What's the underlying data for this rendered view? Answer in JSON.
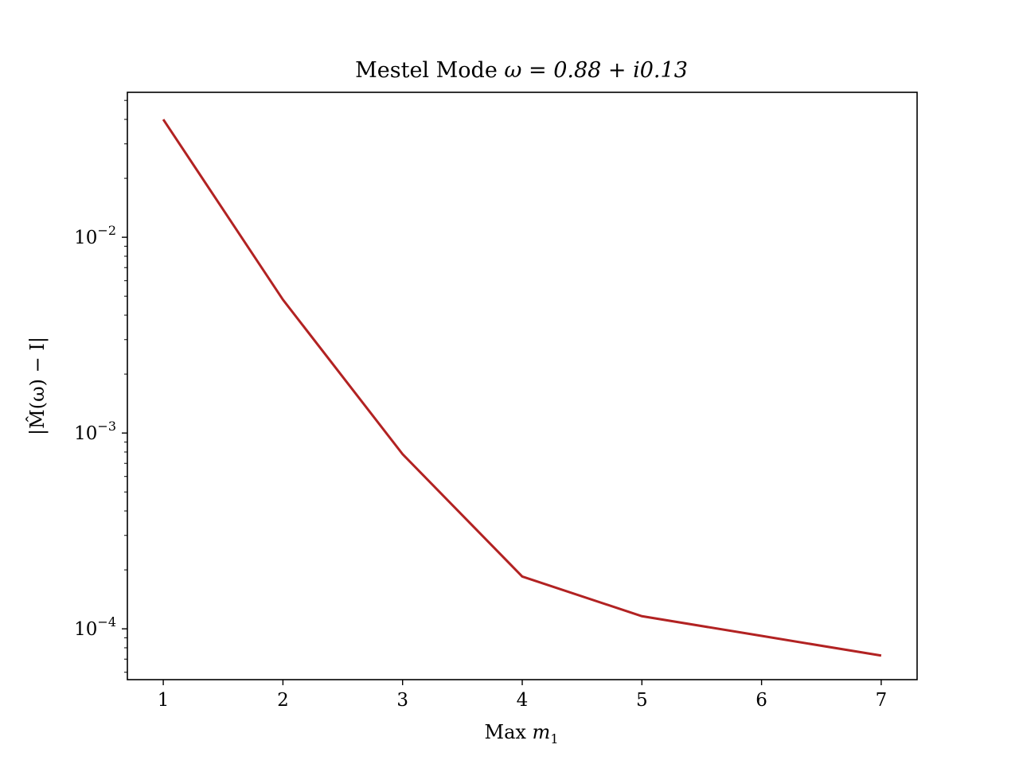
{
  "chart_data": {
    "type": "line",
    "title_prefix": "Mestel Mode ",
    "title_math": "ω = 0.88 + i0.13",
    "xlabel_prefix": "Max ",
    "xlabel_math": "m",
    "xlabel_sub": "1",
    "ylabel": "|M̂(ω) − I|",
    "yscale": "log",
    "xlim": [
      0.7,
      7.3
    ],
    "ylim": [
      5.5e-05,
      0.055
    ],
    "x_ticks": [
      1,
      2,
      3,
      4,
      5,
      6,
      7
    ],
    "y_ticks": [
      {
        "value": 0.01,
        "base": "10",
        "exp": "−2"
      },
      {
        "value": 0.001,
        "base": "10",
        "exp": "−3"
      },
      {
        "value": 0.0001,
        "base": "10",
        "exp": "−4"
      }
    ],
    "series": [
      {
        "color": "#b22222",
        "x": [
          1,
          2,
          3,
          4,
          5,
          6,
          7
        ],
        "y": [
          0.04,
          0.0048,
          0.00078,
          0.000185,
          0.000116,
          9.2e-05,
          7.3e-05
        ]
      }
    ],
    "grid": false
  }
}
